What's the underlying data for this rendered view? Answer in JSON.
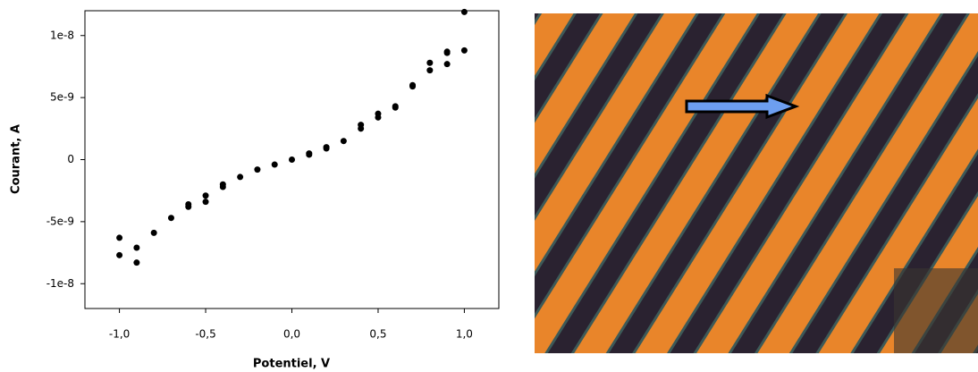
{
  "chart_data": {
    "type": "scatter",
    "x": [
      -1.0,
      -1.0,
      -0.9,
      -0.9,
      -0.8,
      -0.7,
      -0.6,
      -0.6,
      -0.5,
      -0.5,
      -0.4,
      -0.4,
      -0.3,
      -0.2,
      -0.1,
      0.0,
      0.1,
      0.1,
      0.2,
      0.2,
      0.3,
      0.4,
      0.4,
      0.5,
      0.5,
      0.6,
      0.6,
      0.7,
      0.7,
      0.8,
      0.8,
      0.9,
      0.9,
      0.9,
      1.0,
      1.0
    ],
    "values": [
      -6.3e-09,
      -7.7e-09,
      -7.1e-09,
      -8.3e-09,
      -5.9e-09,
      -4.7e-09,
      -3.6e-09,
      -3.8e-09,
      -2.9e-09,
      -3.4e-09,
      -2e-09,
      -2.2e-09,
      -1.4e-09,
      -8e-10,
      -4e-10,
      0,
      5e-10,
      4e-10,
      1e-09,
      9e-10,
      1.5e-09,
      2.8e-09,
      2.5e-09,
      3.7e-09,
      3.4e-09,
      4.3e-09,
      4.2e-09,
      6e-09,
      5.9e-09,
      7.8e-09,
      7.2e-09,
      8.7e-09,
      8.6e-09,
      7.7e-09,
      1.19e-08,
      8.8e-09
    ],
    "color": "#000000",
    "xlabel": "Potentiel, V",
    "ylabel": "Courant, A",
    "xlim": [
      -1.2,
      1.2
    ],
    "ylim": [
      -1.2e-08,
      1.2e-08
    ],
    "xticks": [
      {
        "value": -1,
        "label": "-1,0"
      },
      {
        "value": -0.5,
        "label": "-0,5"
      },
      {
        "value": 0,
        "label": "0,0"
      },
      {
        "value": 0.5,
        "label": "0,5"
      },
      {
        "value": 1,
        "label": "1,0"
      }
    ],
    "yticks": [
      -1e-08,
      -5e-09,
      0,
      5e-09,
      1e-08
    ]
  }
}
